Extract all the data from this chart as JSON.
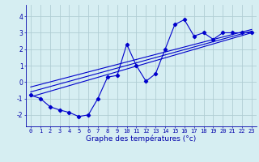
{
  "xlabel": "Graphe des températures (°c)",
  "bg_color": "#d6eef2",
  "grid_color": "#b0cdd4",
  "line_color": "#0000cc",
  "tick_color": "#0000aa",
  "xlim": [
    -0.5,
    23.5
  ],
  "ylim": [
    -2.7,
    4.7
  ],
  "xticks": [
    0,
    1,
    2,
    3,
    4,
    5,
    6,
    7,
    8,
    9,
    10,
    11,
    12,
    13,
    14,
    15,
    16,
    17,
    18,
    19,
    20,
    21,
    22,
    23
  ],
  "yticks": [
    -2,
    -1,
    0,
    1,
    2,
    3,
    4
  ],
  "main_x": [
    0,
    1,
    2,
    3,
    4,
    5,
    6,
    7,
    8,
    9,
    10,
    11,
    12,
    13,
    14,
    15,
    16,
    17,
    18,
    19,
    20,
    21,
    22,
    23
  ],
  "main_y": [
    -0.8,
    -1.0,
    -1.5,
    -1.7,
    -1.85,
    -2.1,
    -2.0,
    -1.0,
    0.3,
    0.4,
    2.3,
    1.0,
    0.05,
    0.5,
    2.0,
    3.5,
    3.8,
    2.8,
    3.0,
    2.6,
    3.0,
    3.0,
    3.0,
    3.0
  ],
  "line1_x": [
    0,
    23
  ],
  "line1_y": [
    -0.9,
    3.0
  ],
  "line2_x": [
    0,
    23
  ],
  "line2_y": [
    -0.6,
    3.1
  ],
  "line3_x": [
    0,
    23
  ],
  "line3_y": [
    -0.3,
    3.2
  ],
  "xlabel_fontsize": 6.5,
  "tick_fontsize": 5.0,
  "marker_size": 2.2,
  "linewidth": 0.8
}
